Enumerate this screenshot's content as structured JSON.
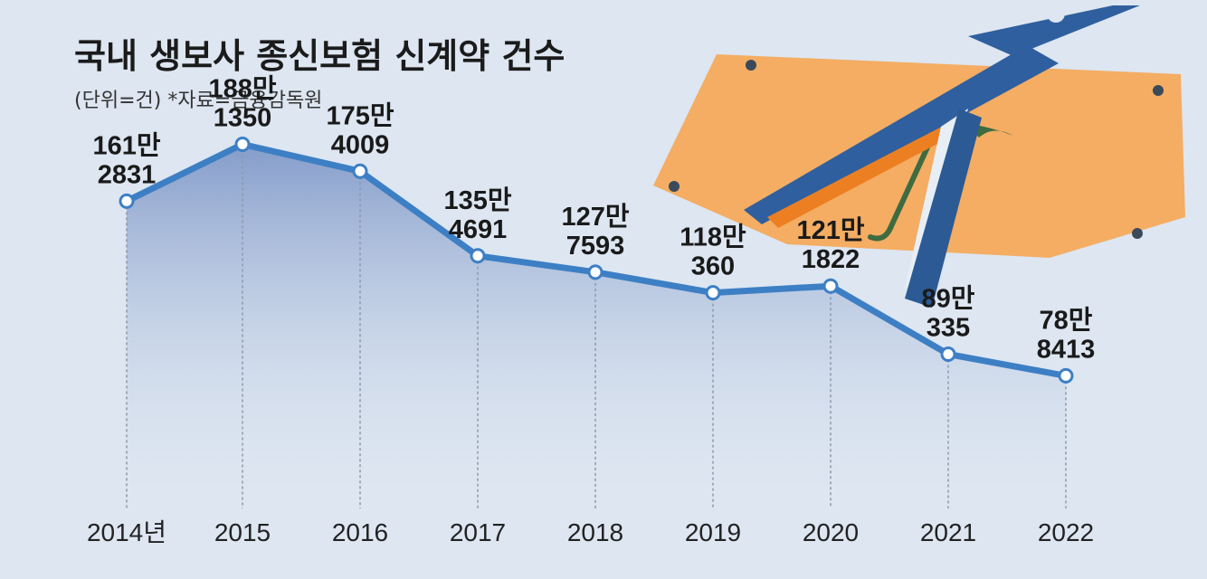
{
  "chart_data": {
    "type": "area",
    "title": "국내 생보사 종신보험 신계약 건수",
    "subtitle": "(단위=건) *자료=금융감독원",
    "categories": [
      "2014년",
      "2015",
      "2016",
      "2017",
      "2018",
      "2019",
      "2020",
      "2021",
      "2022"
    ],
    "values": [
      1612831,
      1881350,
      1754009,
      1354691,
      1277593,
      1180360,
      1211822,
      890335,
      788413
    ],
    "labels": [
      {
        "line1": "161만",
        "line2": "2831"
      },
      {
        "line1": "188만",
        "line2": "1350"
      },
      {
        "line1": "175만",
        "line2": "4009"
      },
      {
        "line1": "135만",
        "line2": "4691"
      },
      {
        "line1": "127만",
        "line2": "7593"
      },
      {
        "line1": "118만",
        "line2": "360"
      },
      {
        "line1": "121만",
        "line2": "1822"
      },
      {
        "line1": "89만",
        "line2": "335"
      },
      {
        "line1": "78만",
        "line2": "8413"
      }
    ],
    "ylim": [
      0,
      2400000
    ],
    "grid": false,
    "legend": "none",
    "colors": {
      "line": "#3d7fc4",
      "fill_top": "#7f98c8",
      "fill_bottom": "#dde6f1",
      "background": "#dde6f1"
    }
  },
  "illustration": {
    "icons": [
      "insurance-card-icon",
      "umbrella-icon",
      "scissors-icon"
    ],
    "colors": {
      "card": "#f4ad63",
      "umbrella": "#3e6b3f",
      "scissors": "#2f5f9e"
    }
  }
}
